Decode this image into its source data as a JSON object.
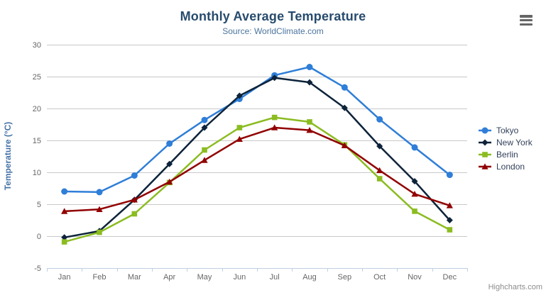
{
  "chart_data": {
    "type": "line",
    "title": "Monthly Average Temperature",
    "subtitle": "Source: WorldClimate.com",
    "xlabel": "",
    "ylabel": "Temperature (°C)",
    "categories": [
      "Jan",
      "Feb",
      "Mar",
      "Apr",
      "May",
      "Jun",
      "Jul",
      "Aug",
      "Sep",
      "Oct",
      "Nov",
      "Dec"
    ],
    "series": [
      {
        "name": "Tokyo",
        "color": "#2f7ed8",
        "marker": "circle",
        "values": [
          7.0,
          6.9,
          9.5,
          14.5,
          18.2,
          21.5,
          25.2,
          26.5,
          23.3,
          18.3,
          13.9,
          9.6
        ]
      },
      {
        "name": "New York",
        "color": "#0d233a",
        "marker": "diamond",
        "values": [
          -0.2,
          0.8,
          5.7,
          11.3,
          17.0,
          22.0,
          24.8,
          24.1,
          20.1,
          14.1,
          8.6,
          2.5
        ]
      },
      {
        "name": "Berlin",
        "color": "#8bbc21",
        "marker": "square",
        "values": [
          -0.9,
          0.6,
          3.5,
          8.4,
          13.5,
          17.0,
          18.6,
          17.9,
          14.3,
          9.0,
          3.9,
          1.0
        ]
      },
      {
        "name": "London",
        "color": "#910000",
        "marker": "triangle",
        "values": [
          3.9,
          4.2,
          5.7,
          8.5,
          11.9,
          15.2,
          17.0,
          16.6,
          14.2,
          10.3,
          6.6,
          4.8
        ]
      }
    ],
    "ylim": [
      -5,
      30
    ],
    "yticks": [
      -5,
      0,
      5,
      10,
      15,
      20,
      25,
      30
    ],
    "grid": true,
    "legend_position": "right",
    "layout_colors": {
      "grid_line": "#c8c8c8",
      "axis_line": "#c0d0e0",
      "tick_label": "#666666",
      "axis_title": "#4572a7"
    }
  },
  "credit": {
    "label": "Highcharts.com"
  }
}
